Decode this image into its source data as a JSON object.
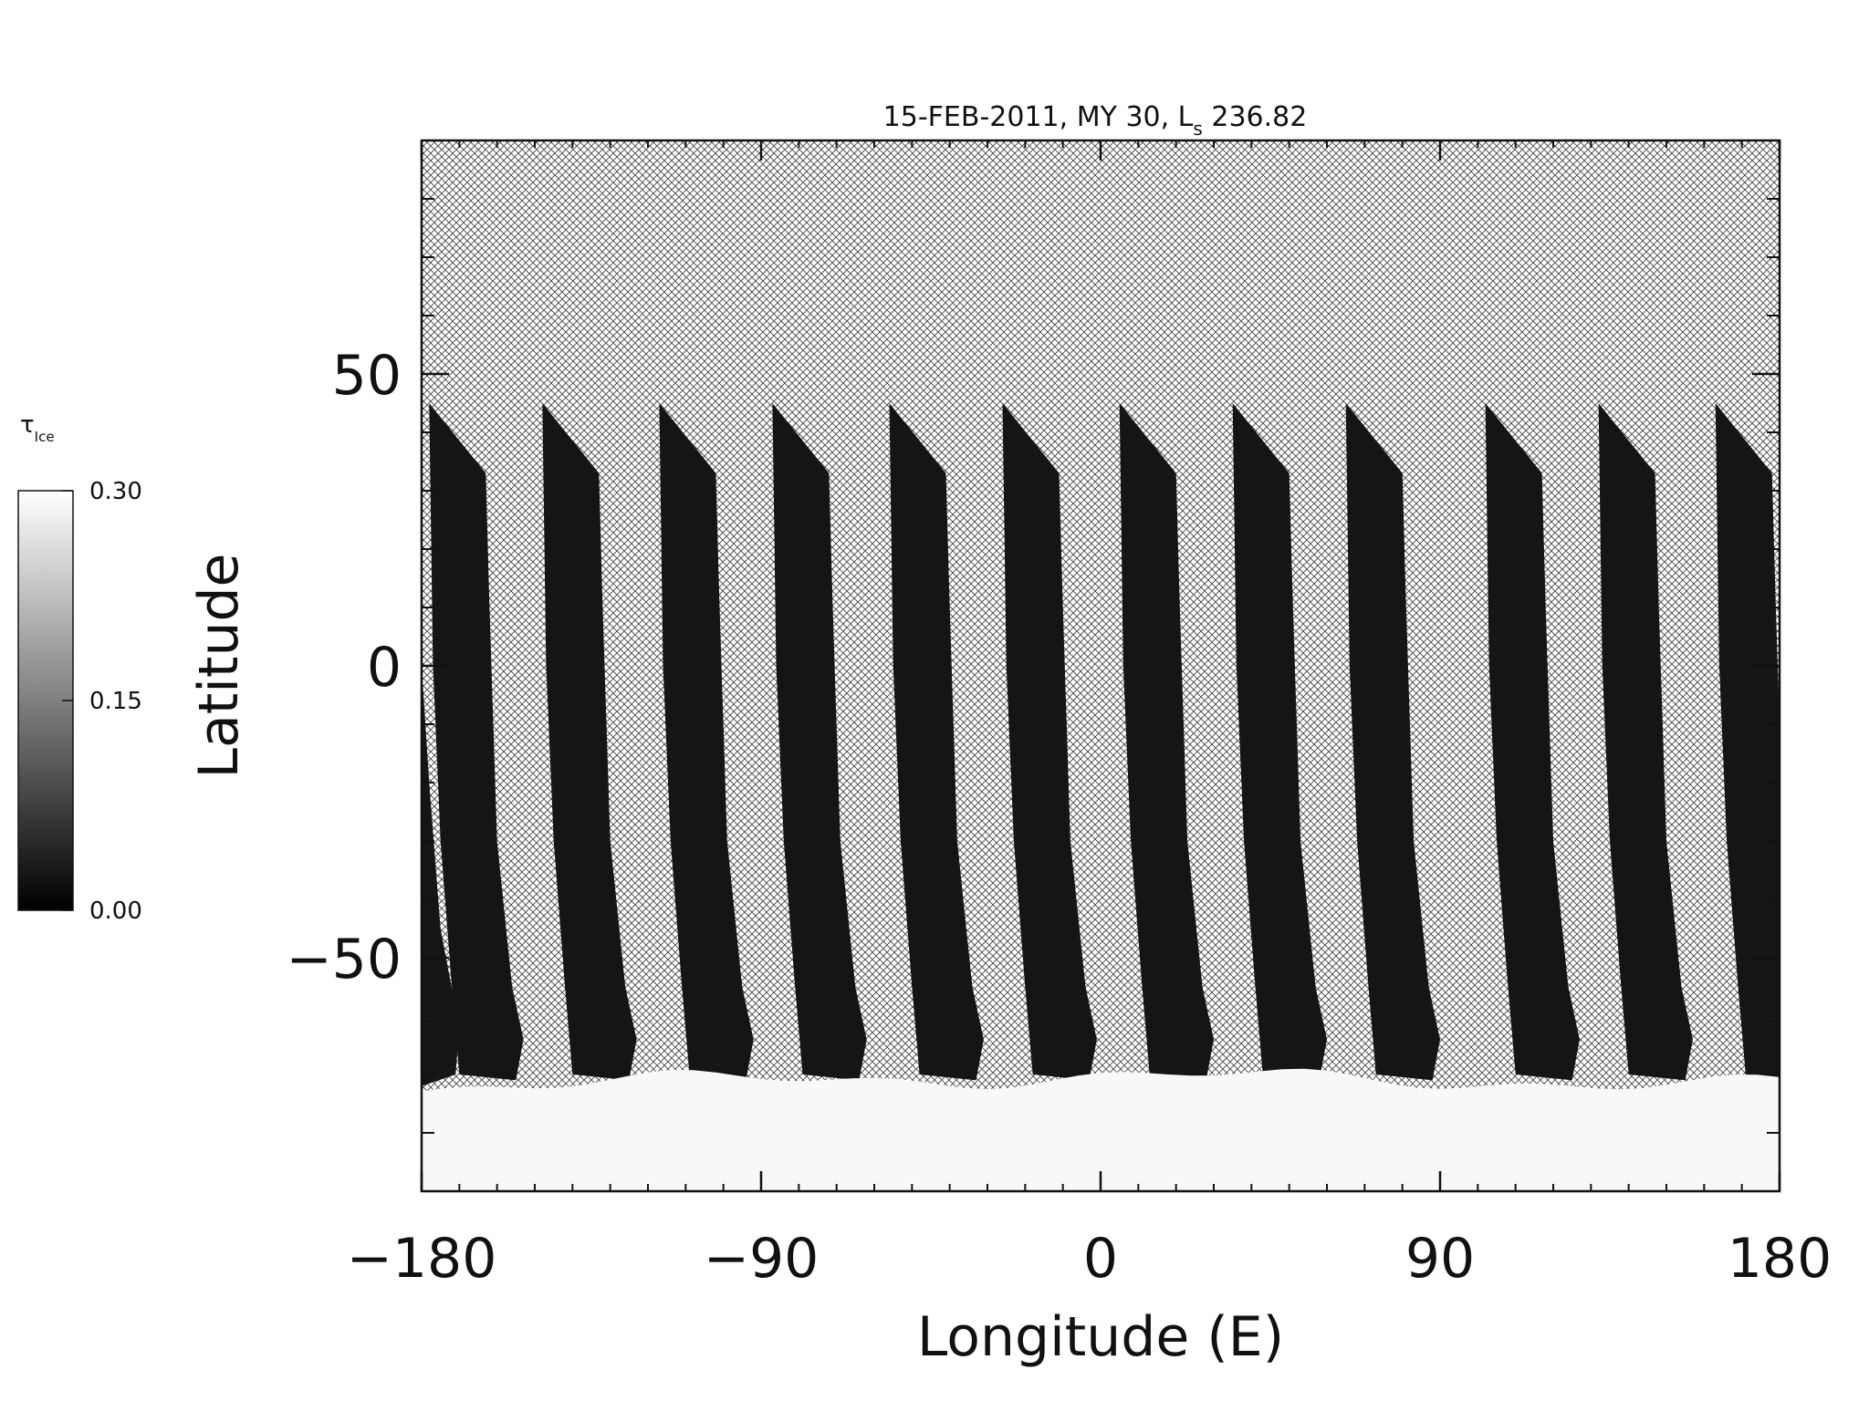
{
  "chart_data": {
    "type": "heatmap",
    "title_main": "15-FEB-2011, MY 30,  L",
    "title_sub": "s",
    "title_value": " 236.82",
    "xlabel": "Longitude (E)",
    "ylabel": "Latitude",
    "xlim": [
      -180,
      180
    ],
    "ylim": [
      -90,
      90
    ],
    "x_ticks": [
      -180,
      -90,
      0,
      90,
      180
    ],
    "x_tick_labels": [
      "−180",
      "−90",
      "0",
      "90",
      "180"
    ],
    "y_ticks": [
      -50,
      0,
      50
    ],
    "y_tick_labels": [
      "−50",
      "0",
      "50"
    ],
    "grid": false,
    "colorbar": {
      "label_main": "τ",
      "label_sub": "Ice",
      "min": 0.0,
      "max": 0.3,
      "ticks": [
        0.0,
        0.15,
        0.3
      ],
      "tick_labels": [
        "0.00",
        "0.15",
        "0.30"
      ],
      "colormap": "grayscale",
      "position": "left"
    },
    "no_data_pattern": "crosshatch",
    "swaths": {
      "description_free": true,
      "top_latitude": 45,
      "break_latitude": 33,
      "bottom_latitude": -70,
      "start_longitudes": [
        -178,
        -148,
        -117,
        -87,
        -56,
        -26,
        5,
        35,
        65,
        102,
        132,
        163
      ],
      "value": 0.02
    },
    "polar_cap": {
      "edge_latitude": -72,
      "value": 0.3
    },
    "colors": {
      "swath": "#151515",
      "polar_cap": "#f8f8f8",
      "hatch": "#444444",
      "background": "#ffffff"
    }
  }
}
